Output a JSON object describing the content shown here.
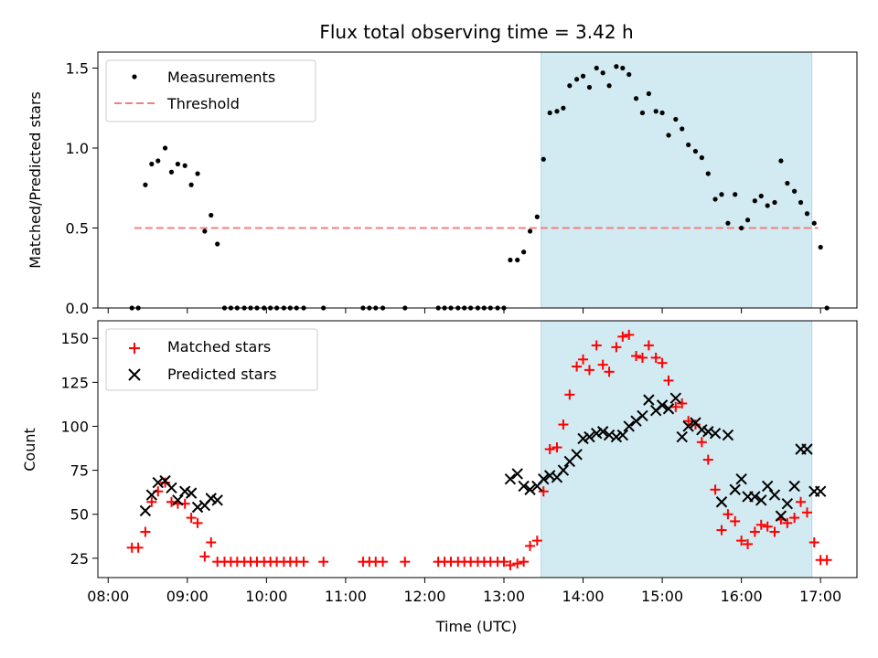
{
  "chart_data": {
    "type": "scatter",
    "title": "Flux total observing time = 3.42 h",
    "xlabel": "Time (UTC)",
    "x_ticks": [
      "08:00",
      "09:00",
      "10:00",
      "11:00",
      "12:00",
      "13:00",
      "14:00",
      "15:00",
      "16:00",
      "17:00"
    ],
    "xlim": [
      7.87,
      17.46
    ],
    "highlight_span": {
      "start": 13.47,
      "end": 16.89,
      "color": "#add8e6"
    },
    "colors": {
      "measurements": "#000000",
      "threshold": "#f08080",
      "matched": "#ff0000",
      "predicted": "#000000",
      "span": "#add8e6"
    },
    "top": {
      "ylabel": "Matched/Predicted stars",
      "ylim": [
        0,
        1.6
      ],
      "y_ticks": [
        "0.0",
        "0.5",
        "1.0",
        "1.5"
      ],
      "y_tick_values": [
        0,
        0.5,
        1.0,
        1.5
      ],
      "legend": {
        "placement": "upper-left",
        "entries": [
          "Measurements",
          "Threshold"
        ]
      },
      "threshold": {
        "value": 0.5,
        "x_start": 8.33,
        "x_end": 16.97
      },
      "measurements": [
        [
          8.3,
          0
        ],
        [
          8.38,
          0
        ],
        [
          8.47,
          0.77
        ],
        [
          8.55,
          0.9
        ],
        [
          8.63,
          0.92
        ],
        [
          8.72,
          1.0
        ],
        [
          8.8,
          0.85
        ],
        [
          8.88,
          0.9
        ],
        [
          8.97,
          0.89
        ],
        [
          9.05,
          0.77
        ],
        [
          9.13,
          0.84
        ],
        [
          9.22,
          0.48
        ],
        [
          9.3,
          0.58
        ],
        [
          9.38,
          0.4
        ],
        [
          9.47,
          0
        ],
        [
          9.55,
          0
        ],
        [
          9.63,
          0
        ],
        [
          9.72,
          0
        ],
        [
          9.8,
          0
        ],
        [
          9.88,
          0
        ],
        [
          9.97,
          0
        ],
        [
          10.05,
          0
        ],
        [
          10.13,
          0
        ],
        [
          10.22,
          0
        ],
        [
          10.3,
          0
        ],
        [
          10.38,
          0
        ],
        [
          10.47,
          0
        ],
        [
          10.72,
          0
        ],
        [
          11.22,
          0
        ],
        [
          11.3,
          0
        ],
        [
          11.38,
          0
        ],
        [
          11.47,
          0
        ],
        [
          11.75,
          0
        ],
        [
          12.17,
          0
        ],
        [
          12.25,
          0
        ],
        [
          12.33,
          0
        ],
        [
          12.42,
          0
        ],
        [
          12.5,
          0
        ],
        [
          12.58,
          0
        ],
        [
          12.67,
          0
        ],
        [
          12.75,
          0
        ],
        [
          12.83,
          0
        ],
        [
          12.92,
          0
        ],
        [
          13.0,
          0
        ],
        [
          13.08,
          0.3
        ],
        [
          13.17,
          0.3
        ],
        [
          13.25,
          0.35
        ],
        [
          13.33,
          0.48
        ],
        [
          13.42,
          0.57
        ],
        [
          13.5,
          0.93
        ],
        [
          13.58,
          1.22
        ],
        [
          13.67,
          1.23
        ],
        [
          13.75,
          1.25
        ],
        [
          13.83,
          1.39
        ],
        [
          13.92,
          1.43
        ],
        [
          14.0,
          1.45
        ],
        [
          14.08,
          1.38
        ],
        [
          14.17,
          1.5
        ],
        [
          14.25,
          1.47
        ],
        [
          14.33,
          1.39
        ],
        [
          14.42,
          1.51
        ],
        [
          14.5,
          1.5
        ],
        [
          14.58,
          1.46
        ],
        [
          14.67,
          1.31
        ],
        [
          14.75,
          1.22
        ],
        [
          14.83,
          1.34
        ],
        [
          14.92,
          1.23
        ],
        [
          15.0,
          1.22
        ],
        [
          15.08,
          1.08
        ],
        [
          15.17,
          1.18
        ],
        [
          15.25,
          1.12
        ],
        [
          15.33,
          1.02
        ],
        [
          15.42,
          0.98
        ],
        [
          15.5,
          0.94
        ],
        [
          15.58,
          0.84
        ],
        [
          15.67,
          0.68
        ],
        [
          15.75,
          0.71
        ],
        [
          15.83,
          0.53
        ],
        [
          15.92,
          0.71
        ],
        [
          16.0,
          0.5
        ],
        [
          16.08,
          0.55
        ],
        [
          16.17,
          0.67
        ],
        [
          16.25,
          0.7
        ],
        [
          16.33,
          0.64
        ],
        [
          16.42,
          0.66
        ],
        [
          16.5,
          0.92
        ],
        [
          16.58,
          0.78
        ],
        [
          16.67,
          0.73
        ],
        [
          16.75,
          0.66
        ],
        [
          16.83,
          0.59
        ],
        [
          16.92,
          0.53
        ],
        [
          17.0,
          0.38
        ],
        [
          17.08,
          0
        ]
      ]
    },
    "bottom": {
      "ylabel": "Count",
      "ylim": [
        14,
        160
      ],
      "y_ticks": [
        "25",
        "50",
        "75",
        "100",
        "125",
        "150"
      ],
      "y_tick_values": [
        25,
        50,
        75,
        100,
        125,
        150
      ],
      "legend": {
        "placement": "upper-left",
        "entries": [
          "Matched stars",
          "Predicted stars"
        ]
      },
      "matched": [
        [
          8.3,
          31
        ],
        [
          8.38,
          31
        ],
        [
          8.47,
          40
        ],
        [
          8.55,
          57
        ],
        [
          8.63,
          63
        ],
        [
          8.72,
          68
        ],
        [
          8.8,
          57
        ],
        [
          8.88,
          56
        ],
        [
          8.97,
          56
        ],
        [
          9.05,
          48
        ],
        [
          9.13,
          45
        ],
        [
          9.22,
          26
        ],
        [
          9.3,
          34
        ],
        [
          9.38,
          23
        ],
        [
          9.47,
          23
        ],
        [
          9.55,
          23
        ],
        [
          9.63,
          23
        ],
        [
          9.72,
          23
        ],
        [
          9.8,
          23
        ],
        [
          9.88,
          23
        ],
        [
          9.97,
          23
        ],
        [
          10.05,
          23
        ],
        [
          10.13,
          23
        ],
        [
          10.22,
          23
        ],
        [
          10.3,
          23
        ],
        [
          10.38,
          23
        ],
        [
          10.47,
          23
        ],
        [
          10.72,
          23
        ],
        [
          11.22,
          23
        ],
        [
          11.3,
          23
        ],
        [
          11.38,
          23
        ],
        [
          11.47,
          23
        ],
        [
          11.75,
          23
        ],
        [
          12.17,
          23
        ],
        [
          12.25,
          23
        ],
        [
          12.33,
          23
        ],
        [
          12.42,
          23
        ],
        [
          12.5,
          23
        ],
        [
          12.58,
          23
        ],
        [
          12.67,
          23
        ],
        [
          12.75,
          23
        ],
        [
          12.83,
          23
        ],
        [
          12.92,
          23
        ],
        [
          13.0,
          23
        ],
        [
          13.08,
          21
        ],
        [
          13.17,
          22
        ],
        [
          13.25,
          23
        ],
        [
          13.33,
          32
        ],
        [
          13.42,
          35
        ],
        [
          13.5,
          63
        ],
        [
          13.58,
          87
        ],
        [
          13.67,
          88
        ],
        [
          13.75,
          101
        ],
        [
          13.83,
          118
        ],
        [
          13.92,
          134
        ],
        [
          14.0,
          138
        ],
        [
          14.08,
          132
        ],
        [
          14.17,
          146
        ],
        [
          14.25,
          135
        ],
        [
          14.33,
          131
        ],
        [
          14.42,
          145
        ],
        [
          14.5,
          151
        ],
        [
          14.58,
          152
        ],
        [
          14.67,
          140
        ],
        [
          14.75,
          139
        ],
        [
          14.83,
          146
        ],
        [
          14.92,
          139
        ],
        [
          15.0,
          136
        ],
        [
          15.08,
          126
        ],
        [
          15.17,
          111
        ],
        [
          15.25,
          113
        ],
        [
          15.33,
          103
        ],
        [
          15.42,
          101
        ],
        [
          15.5,
          91
        ],
        [
          15.58,
          81
        ],
        [
          15.67,
          64
        ],
        [
          15.75,
          41
        ],
        [
          15.83,
          50
        ],
        [
          15.92,
          46
        ],
        [
          16.0,
          35
        ],
        [
          16.08,
          33
        ],
        [
          16.17,
          40
        ],
        [
          16.25,
          44
        ],
        [
          16.33,
          43
        ],
        [
          16.42,
          40
        ],
        [
          16.5,
          47
        ],
        [
          16.58,
          45
        ],
        [
          16.67,
          48
        ],
        [
          16.75,
          57
        ],
        [
          16.83,
          51
        ],
        [
          16.92,
          34
        ],
        [
          17.0,
          24
        ],
        [
          17.08,
          24
        ]
      ],
      "predicted": [
        [
          8.47,
          52
        ],
        [
          8.55,
          61
        ],
        [
          8.63,
          68
        ],
        [
          8.72,
          69
        ],
        [
          8.8,
          65
        ],
        [
          8.88,
          58
        ],
        [
          8.97,
          63
        ],
        [
          9.05,
          62
        ],
        [
          9.13,
          54
        ],
        [
          9.22,
          55
        ],
        [
          9.3,
          59
        ],
        [
          9.38,
          58
        ],
        [
          13.08,
          70
        ],
        [
          13.17,
          73
        ],
        [
          13.25,
          66
        ],
        [
          13.33,
          64
        ],
        [
          13.42,
          66
        ],
        [
          13.5,
          70
        ],
        [
          13.58,
          72
        ],
        [
          13.67,
          71
        ],
        [
          13.75,
          75
        ],
        [
          13.83,
          80
        ],
        [
          13.92,
          84
        ],
        [
          14.0,
          93
        ],
        [
          14.08,
          94
        ],
        [
          14.17,
          96
        ],
        [
          14.25,
          97
        ],
        [
          14.33,
          95
        ],
        [
          14.42,
          94
        ],
        [
          14.5,
          95
        ],
        [
          14.58,
          100
        ],
        [
          14.67,
          103
        ],
        [
          14.75,
          106
        ],
        [
          14.83,
          115
        ],
        [
          14.92,
          109
        ],
        [
          15.0,
          112
        ],
        [
          15.08,
          110
        ],
        [
          15.17,
          116
        ],
        [
          15.25,
          94
        ],
        [
          15.33,
          100
        ],
        [
          15.42,
          102
        ],
        [
          15.5,
          98
        ],
        [
          15.58,
          97
        ],
        [
          15.67,
          96
        ],
        [
          15.75,
          57
        ],
        [
          15.83,
          95
        ],
        [
          15.92,
          64
        ],
        [
          16.0,
          70
        ],
        [
          16.08,
          60
        ],
        [
          16.17,
          60
        ],
        [
          16.25,
          58
        ],
        [
          16.33,
          66
        ],
        [
          16.42,
          61
        ],
        [
          16.5,
          49
        ],
        [
          16.58,
          56
        ],
        [
          16.67,
          66
        ],
        [
          16.75,
          87
        ],
        [
          16.83,
          87
        ],
        [
          16.92,
          63
        ],
        [
          17.0,
          63
        ]
      ]
    }
  }
}
